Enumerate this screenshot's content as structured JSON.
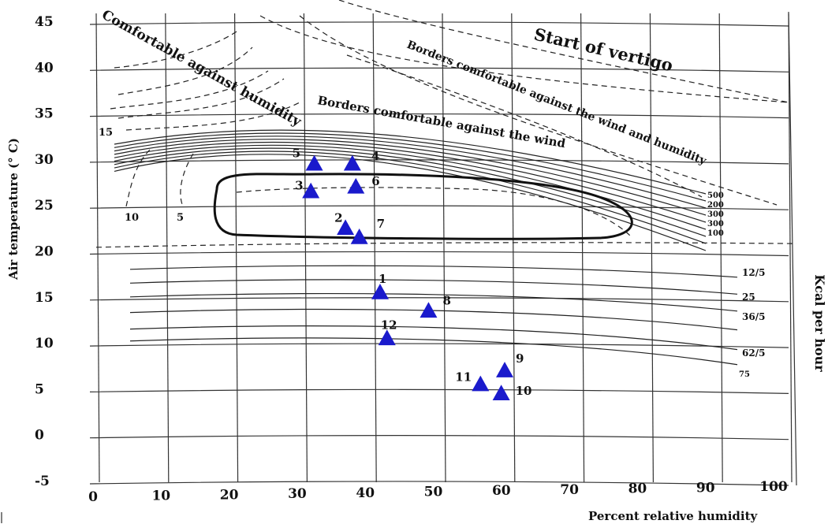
{
  "chart_data": {
    "type": "scatter",
    "title": "",
    "xlabel": "Percent relative humidity",
    "ylabel": "Air temperature (° C)",
    "y2label": "Kcal per hour",
    "xlim": [
      0,
      100
    ],
    "ylim": [
      -5,
      45
    ],
    "x_ticks": [
      "0",
      "10",
      "20",
      "30",
      "40",
      "50",
      "60",
      "70",
      "80",
      "90",
      "100"
    ],
    "y_ticks": [
      "-5",
      "0",
      "5",
      "10",
      "15",
      "20",
      "25",
      "30",
      "35",
      "40",
      "45"
    ],
    "grid": true,
    "marker": "triangle",
    "marker_color": "#1a1acc",
    "points": [
      {
        "label": "1",
        "x": 41,
        "y": 15.5
      },
      {
        "label": "2",
        "x": 36,
        "y": 22.5
      },
      {
        "label": "3",
        "x": 31,
        "y": 26.5
      },
      {
        "label": "4",
        "x": 37,
        "y": 29.5
      },
      {
        "label": "5",
        "x": 31.5,
        "y": 29.5
      },
      {
        "label": "6",
        "x": 37.5,
        "y": 27
      },
      {
        "label": "7",
        "x": 38,
        "y": 21.5
      },
      {
        "label": "8",
        "x": 48,
        "y": 13.5
      },
      {
        "label": "9",
        "x": 59,
        "y": 7
      },
      {
        "label": "10",
        "x": 58.5,
        "y": 4.5
      },
      {
        "label": "11",
        "x": 55.5,
        "y": 5.5
      },
      {
        "label": "12",
        "x": 42,
        "y": 10.5
      }
    ],
    "annotations": [
      "Comfortable against humidity",
      "Start of vertigo",
      "Borders comfortable against the wind and humidity",
      "Borders comfortable against the wind"
    ],
    "contour_labels_left": [
      "15",
      "10",
      "5"
    ],
    "contour_labels_right_upper": [
      "500",
      "200",
      "300",
      "300",
      "100"
    ],
    "kcal_labels": [
      "12/5",
      "25",
      "36/5",
      "62/5",
      "75"
    ]
  }
}
